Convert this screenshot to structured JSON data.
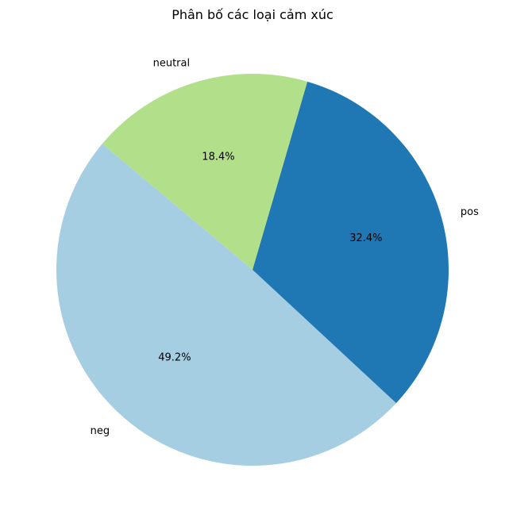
{
  "chart_data": {
    "type": "pie",
    "title": "Phân bố các loại cảm xúc",
    "start_angle_deg": 140,
    "direction": "counterclockwise",
    "slices": [
      {
        "label": "neg",
        "percent": 49.2,
        "percent_text": "49.2%",
        "color": "#a6cee3"
      },
      {
        "label": "pos",
        "percent": 32.4,
        "percent_text": "32.4%",
        "color": "#1f78b4"
      },
      {
        "label": "neutral",
        "percent": 18.4,
        "percent_text": "18.4%",
        "color": "#b2df8a"
      }
    ],
    "legend": "none"
  }
}
